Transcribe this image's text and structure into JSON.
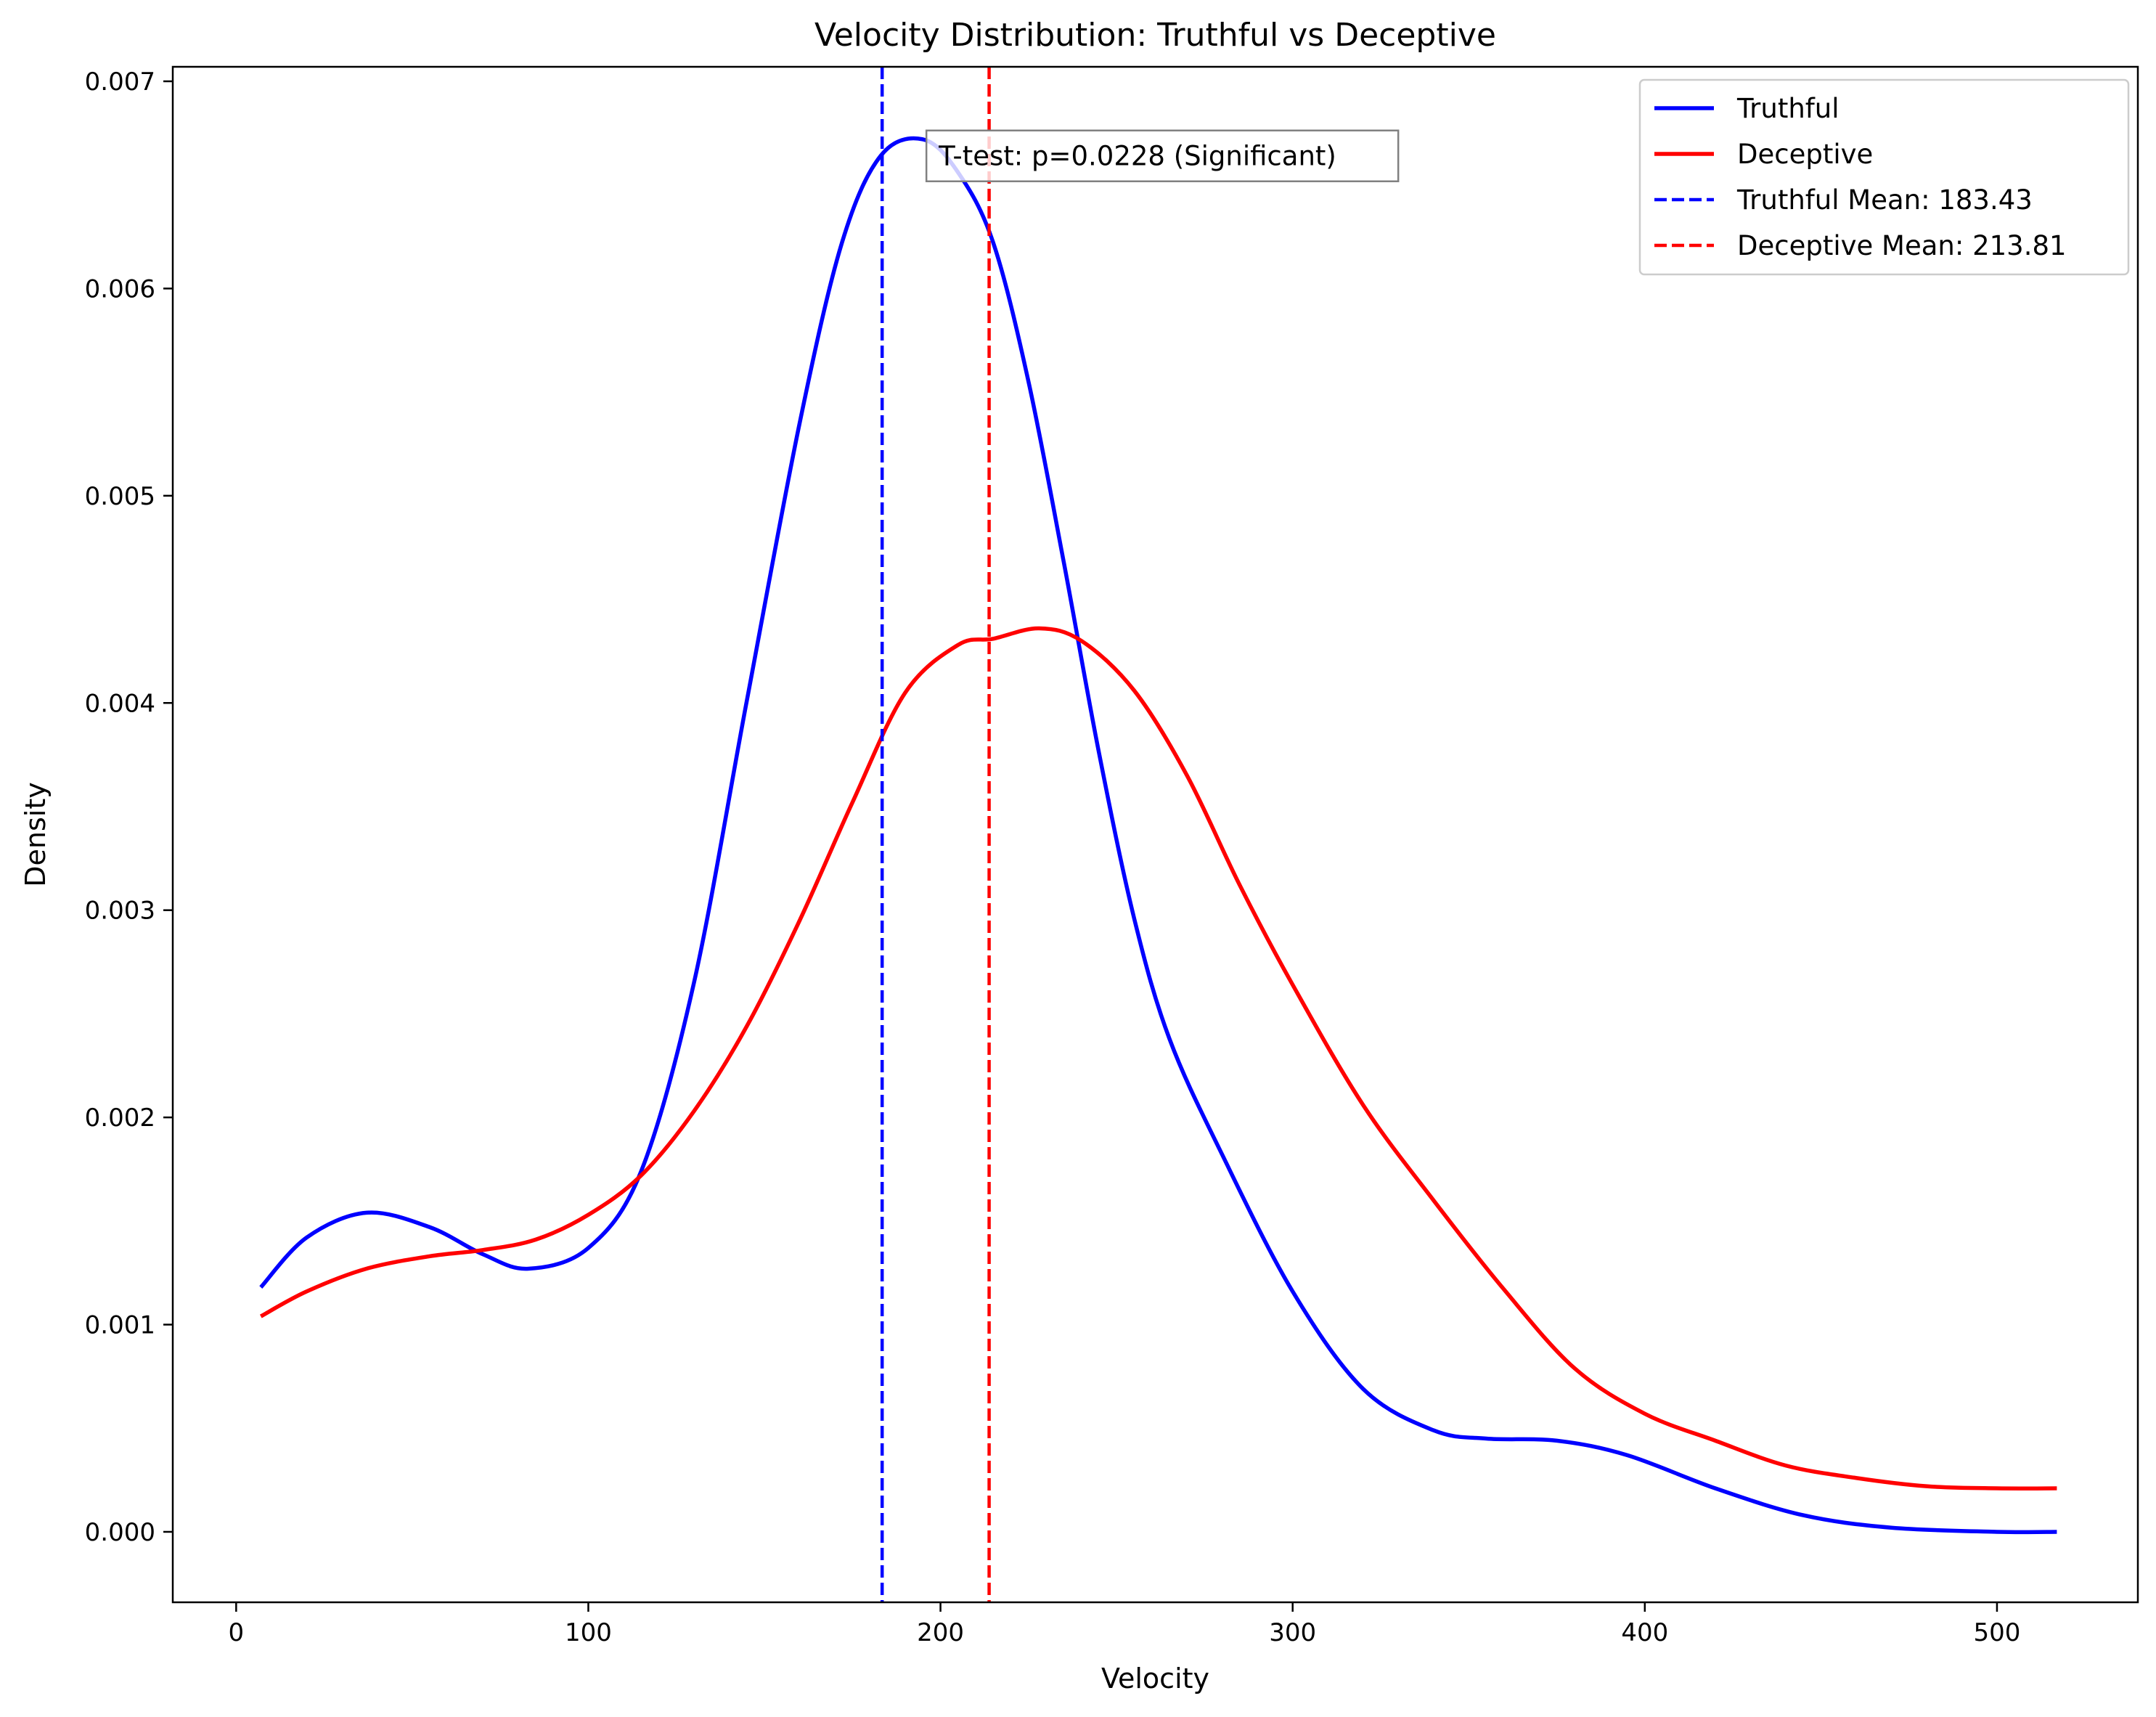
{
  "chart_data": {
    "type": "line",
    "title": "Velocity Distribution: Truthful vs Deceptive",
    "xlabel": "Velocity",
    "ylabel": "Density",
    "xlim": [
      -18,
      540
    ],
    "ylim": [
      -0.00034,
      0.00707
    ],
    "xticks": [
      0,
      100,
      200,
      300,
      400,
      500
    ],
    "xtick_labels": [
      "0",
      "100",
      "200",
      "300",
      "400",
      "500"
    ],
    "yticks": [
      0.0,
      0.001,
      0.002,
      0.003,
      0.004,
      0.005,
      0.006,
      0.007
    ],
    "ytick_labels": [
      "0.000",
      "0.001",
      "0.002",
      "0.003",
      "0.004",
      "0.005",
      "0.006",
      "0.007"
    ],
    "grid": false,
    "legend_position": "top-right",
    "series": [
      {
        "name": "Truthful",
        "color": "#0000ff",
        "style": "solid",
        "x": [
          7,
          20,
          37,
          55,
          70,
          83,
          100,
          115,
          130,
          145,
          160,
          172,
          183,
          195,
          205,
          215,
          225,
          235,
          245,
          255,
          265,
          280,
          300,
          320,
          340,
          355,
          375,
          395,
          420,
          445,
          470,
          500,
          517
        ],
        "y": [
          0.00118,
          0.00142,
          0.00154,
          0.00147,
          0.00134,
          0.00127,
          0.00137,
          0.00174,
          0.00265,
          0.00401,
          0.00535,
          0.00622,
          0.00664,
          0.00672,
          0.00656,
          0.00622,
          0.00555,
          0.00468,
          0.00376,
          0.00296,
          0.00238,
          0.00182,
          0.00116,
          0.00069,
          0.00049,
          0.00045,
          0.00044,
          0.00037,
          0.00021,
          8e-05,
          2e-05,
          0.0,
          0.0
        ]
      },
      {
        "name": "Deceptive",
        "color": "#ff0000",
        "style": "solid",
        "x": [
          7,
          20,
          37,
          55,
          70,
          85,
          100,
          115,
          130,
          145,
          160,
          175,
          190,
          205,
          215,
          228,
          240,
          255,
          270,
          285,
          300,
          320,
          340,
          360,
          380,
          400,
          420,
          440,
          460,
          480,
          500,
          517
        ],
        "y": [
          0.00104,
          0.00116,
          0.00127,
          0.00133,
          0.00136,
          0.00141,
          0.00153,
          0.00172,
          0.00203,
          0.00244,
          0.00295,
          0.00352,
          0.00405,
          0.00428,
          0.00431,
          0.00436,
          0.0043,
          0.00406,
          0.00365,
          0.00312,
          0.00264,
          0.00206,
          0.0016,
          0.00117,
          0.00079,
          0.00057,
          0.00044,
          0.00032,
          0.00026,
          0.00022,
          0.00021,
          0.00021
        ]
      }
    ],
    "vlines": [
      {
        "name": "Truthful Mean: 183.43",
        "x": 183.43,
        "color": "#0000ff",
        "style": "dashed"
      },
      {
        "name": "Deceptive Mean: 213.81",
        "x": 213.81,
        "color": "#ff0000",
        "style": "dashed"
      }
    ],
    "annotation": {
      "text": "T-test: p=0.0228 (Significant)",
      "x": 196,
      "y": 0.00664
    }
  }
}
